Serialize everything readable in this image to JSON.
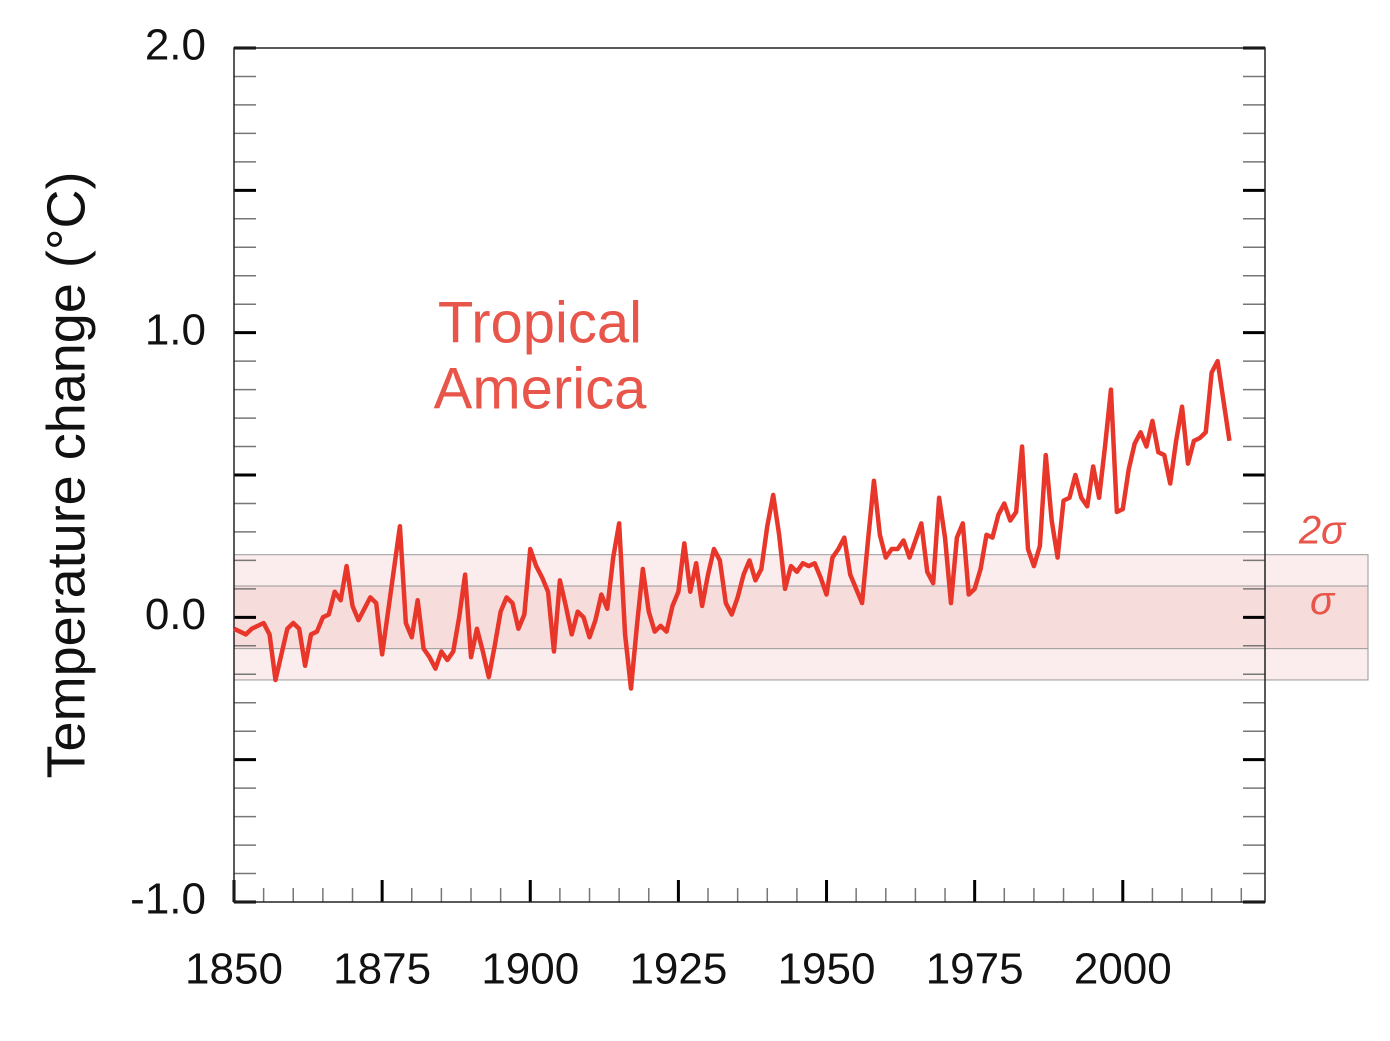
{
  "chart_data": {
    "type": "line",
    "y_label": "Temperature change (°C)",
    "annotation": [
      "Tropical",
      "America"
    ],
    "color": "#e8372a",
    "xlim": [
      1850,
      2024
    ],
    "ylim": [
      -1,
      2
    ],
    "xticks": [
      1850,
      1875,
      1900,
      1925,
      1950,
      1975,
      2000
    ],
    "xticks_minor": [
      1855,
      1860,
      1865,
      1870,
      1880,
      1885,
      1890,
      1895,
      1905,
      1910,
      1915,
      1920,
      1930,
      1935,
      1940,
      1945,
      1955,
      1960,
      1965,
      1970,
      1980,
      1985,
      1990,
      1995,
      2005,
      2010,
      2015,
      2020
    ],
    "yticks": [
      {
        "value": -1,
        "label": "-1.0"
      },
      {
        "value": 0,
        "label": "0.0"
      },
      {
        "value": 1,
        "label": "1.0"
      },
      {
        "value": 2,
        "label": "2.0"
      }
    ],
    "yticks_mid": [
      -0.5,
      0.5,
      1.5
    ],
    "yticks_minor": [
      -0.9,
      -0.8,
      -0.7,
      -0.6,
      -0.4,
      -0.3,
      -0.2,
      -0.1,
      0.1,
      0.2,
      0.3,
      0.4,
      0.6,
      0.7,
      0.8,
      0.9,
      1.1,
      1.2,
      1.3,
      1.4,
      1.6,
      1.7,
      1.8,
      1.9
    ],
    "bands": [
      {
        "label": "2σ",
        "range": [
          -0.22,
          0.22
        ]
      },
      {
        "label": "σ",
        "range": [
          -0.11,
          0.11
        ]
      }
    ],
    "x": [
      1850,
      1851,
      1852,
      1853,
      1854,
      1855,
      1856,
      1857,
      1858,
      1859,
      1860,
      1861,
      1862,
      1863,
      1864,
      1865,
      1866,
      1867,
      1868,
      1869,
      1870,
      1871,
      1872,
      1873,
      1874,
      1875,
      1876,
      1877,
      1878,
      1879,
      1880,
      1881,
      1882,
      1883,
      1884,
      1885,
      1886,
      1887,
      1888,
      1889,
      1890,
      1891,
      1892,
      1893,
      1894,
      1895,
      1896,
      1897,
      1898,
      1899,
      1900,
      1901,
      1902,
      1903,
      1904,
      1905,
      1906,
      1907,
      1908,
      1909,
      1910,
      1911,
      1912,
      1913,
      1914,
      1915,
      1916,
      1917,
      1918,
      1919,
      1920,
      1921,
      1922,
      1923,
      1924,
      1925,
      1926,
      1927,
      1928,
      1929,
      1930,
      1931,
      1932,
      1933,
      1934,
      1935,
      1936,
      1937,
      1938,
      1939,
      1940,
      1941,
      1942,
      1943,
      1944,
      1945,
      1946,
      1947,
      1948,
      1949,
      1950,
      1951,
      1952,
      1953,
      1954,
      1955,
      1956,
      1957,
      1958,
      1959,
      1960,
      1961,
      1962,
      1963,
      1964,
      1965,
      1966,
      1967,
      1968,
      1969,
      1970,
      1971,
      1972,
      1973,
      1974,
      1975,
      1976,
      1977,
      1978,
      1979,
      1980,
      1981,
      1982,
      1983,
      1984,
      1985,
      1986,
      1987,
      1988,
      1989,
      1990,
      1991,
      1992,
      1993,
      1994,
      1995,
      1996,
      1997,
      1998,
      1999,
      2000,
      2001,
      2002,
      2003,
      2004,
      2005,
      2006,
      2007,
      2008,
      2009,
      2010,
      2011,
      2012,
      2013,
      2014,
      2015,
      2016,
      2017,
      2018
    ],
    "values": [
      -0.04,
      -0.05,
      -0.06,
      -0.04,
      -0.03,
      -0.02,
      -0.06,
      -0.22,
      -0.13,
      -0.04,
      -0.02,
      -0.04,
      -0.17,
      -0.06,
      -0.05,
      0,
      0.01,
      0.09,
      0.06,
      0.18,
      0.04,
      -0.01,
      0.03,
      0.07,
      0.05,
      -0.13,
      0.02,
      0.17,
      0.32,
      -0.02,
      -0.07,
      0.06,
      -0.11,
      -0.14,
      -0.18,
      -0.12,
      -0.15,
      -0.12,
      0,
      0.15,
      -0.14,
      -0.04,
      -0.12,
      -0.21,
      -0.1,
      0.02,
      0.07,
      0.05,
      -0.04,
      0.01,
      0.24,
      0.18,
      0.14,
      0.09,
      -0.12,
      0.13,
      0.04,
      -0.06,
      0.02,
      0,
      -0.07,
      -0.01,
      0.08,
      0.03,
      0.21,
      0.33,
      -0.06,
      -0.25,
      -0.03,
      0.17,
      0.02,
      -0.05,
      -0.03,
      -0.05,
      0.04,
      0.09,
      0.26,
      0.09,
      0.19,
      0.04,
      0.15,
      0.24,
      0.2,
      0.05,
      0.01,
      0.07,
      0.15,
      0.2,
      0.13,
      0.17,
      0.32,
      0.43,
      0.29,
      0.1,
      0.18,
      0.16,
      0.19,
      0.18,
      0.19,
      0.14,
      0.08,
      0.21,
      0.24,
      0.28,
      0.15,
      0.1,
      0.05,
      0.27,
      0.48,
      0.29,
      0.21,
      0.24,
      0.24,
      0.27,
      0.21,
      0.27,
      0.33,
      0.16,
      0.12,
      0.42,
      0.28,
      0.05,
      0.28,
      0.33,
      0.08,
      0.1,
      0.17,
      0.29,
      0.28,
      0.36,
      0.4,
      0.34,
      0.37,
      0.6,
      0.24,
      0.18,
      0.25,
      0.57,
      0.34,
      0.21,
      0.41,
      0.42,
      0.5,
      0.42,
      0.39,
      0.53,
      0.42,
      0.6,
      0.8,
      0.37,
      0.38,
      0.52,
      0.61,
      0.65,
      0.6,
      0.69,
      0.58,
      0.57,
      0.47,
      0.62,
      0.74,
      0.54,
      0.62,
      0.63,
      0.65,
      0.86,
      0.9,
      0.76,
      0.62
    ]
  }
}
